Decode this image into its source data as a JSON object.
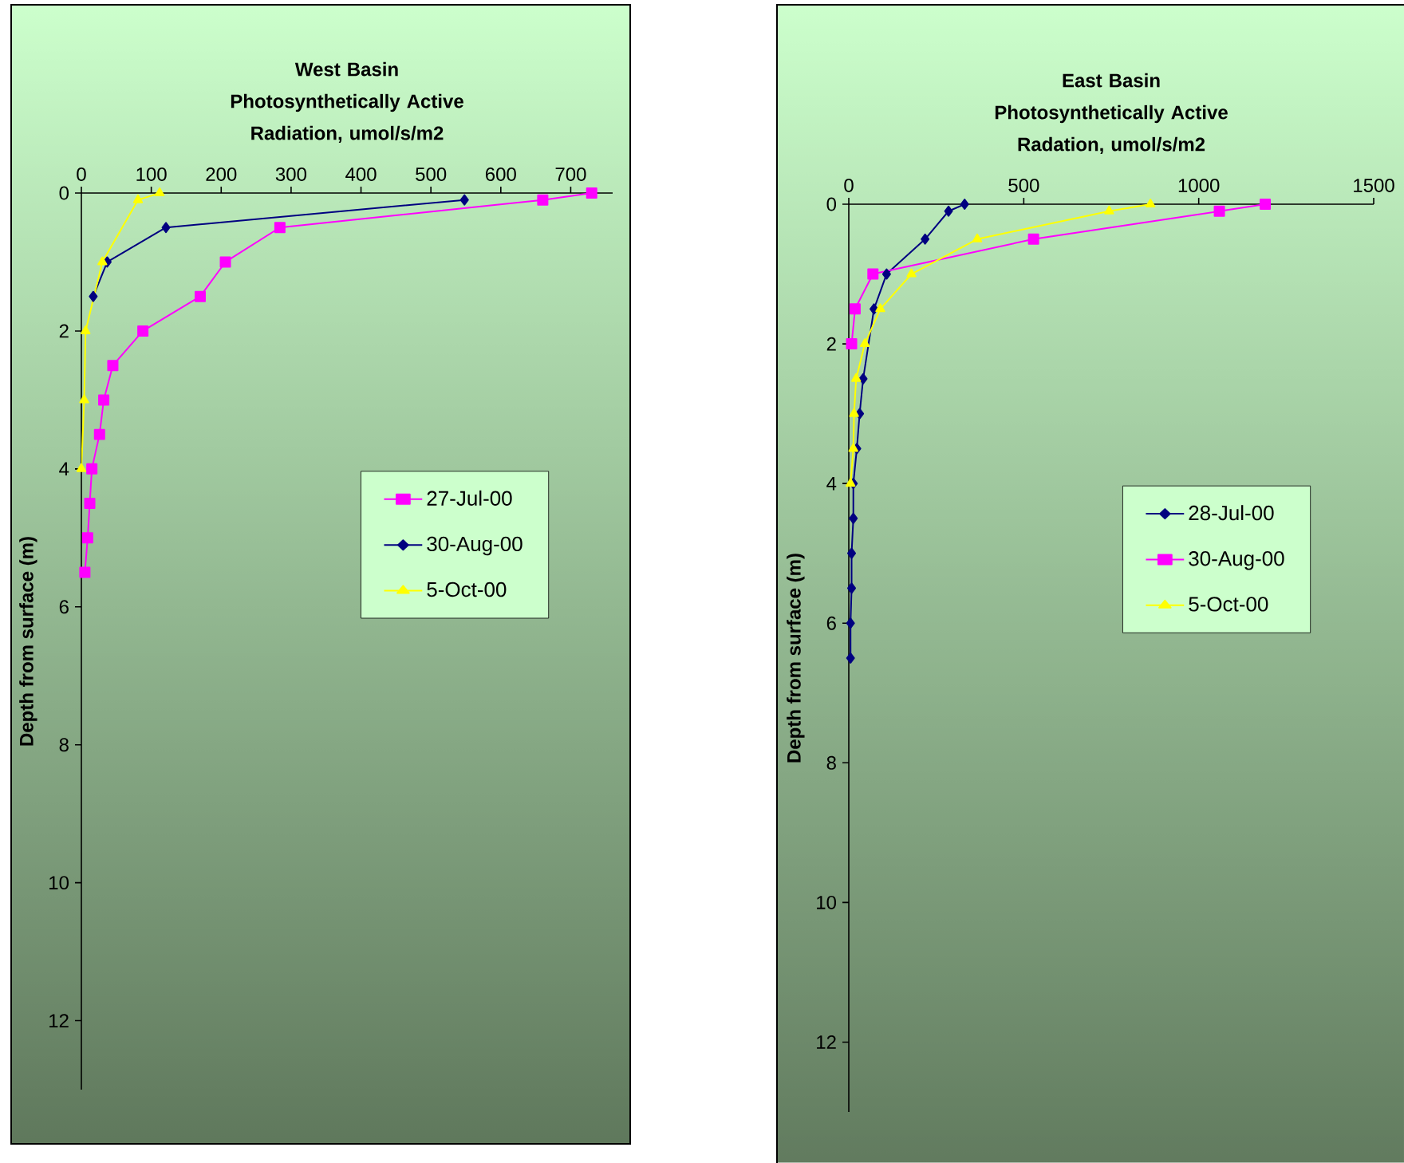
{
  "chart_data": [
    {
      "type": "line",
      "title": "West Basin",
      "subtitle": "Photosynthetically Active Radiation, umol/s/m2",
      "ylabel": "Depth from surface (m)",
      "xlim": [
        0,
        760
      ],
      "xticks": [
        0,
        100,
        200,
        300,
        400,
        500,
        600,
        700
      ],
      "ylim": [
        13,
        0
      ],
      "yticks": [
        0,
        2,
        4,
        6,
        8,
        10,
        12
      ],
      "legend": "right",
      "series": [
        {
          "name": "27-Jul-00",
          "color": "#ff00ff",
          "marker": "square",
          "x": [
            730,
            660,
            284,
            206,
            170,
            88,
            45,
            32,
            26,
            15,
            12,
            9,
            5
          ],
          "values": [
            0,
            0.1,
            0.5,
            1,
            1.5,
            2,
            2.5,
            3,
            3.5,
            4,
            4.5,
            5,
            5.5
          ]
        },
        {
          "name": "30-Aug-00",
          "color": "#000080",
          "marker": "diamond",
          "x": [
            548,
            121,
            37,
            17,
            null
          ],
          "values": [
            0.1,
            0.5,
            1,
            1.5,
            null
          ]
        },
        {
          "name": "5-Oct-00",
          "color": "#ffff00",
          "marker": "triangle",
          "x": [
            112,
            81,
            30,
            6,
            4,
            0
          ],
          "values": [
            0,
            0.1,
            1,
            2,
            3,
            4
          ]
        }
      ]
    },
    {
      "type": "line",
      "title": "East Basin",
      "subtitle": "Photosynthetically Active Radation, umol/s/m2",
      "ylabel": "Depth from surface (m)",
      "xlim": [
        0,
        1500
      ],
      "xticks": [
        0,
        500,
        1000,
        1500
      ],
      "ylim": [
        13,
        0
      ],
      "yticks": [
        0,
        2,
        4,
        6,
        8,
        10,
        12
      ],
      "legend": "right",
      "series": [
        {
          "name": "28-Jul-00",
          "color": "#000080",
          "marker": "diamond",
          "x": [
            331,
            285,
            218,
            108,
            72,
            null,
            41,
            31,
            23,
            13,
            13,
            8,
            8,
            5,
            5
          ],
          "values": [
            0,
            0.1,
            0.5,
            1,
            1.5,
            null,
            2.5,
            3,
            3.5,
            4,
            4.5,
            5,
            5.5,
            6,
            6.5
          ]
        },
        {
          "name": "30-Aug-00",
          "color": "#ff00ff",
          "marker": "square",
          "x": [
            1190,
            1059,
            528,
            69,
            18,
            8
          ],
          "values": [
            0,
            0.1,
            0.5,
            1,
            1.5,
            2
          ]
        },
        {
          "name": "5-Oct-00",
          "color": "#ffff00",
          "marker": "triangle",
          "x": [
            862,
            744,
            367,
            179,
            90,
            46,
            21,
            15,
            13,
            5
          ],
          "values": [
            0,
            0.1,
            0.5,
            1,
            1.5,
            2,
            2.5,
            3,
            3.5,
            4
          ]
        }
      ]
    }
  ]
}
